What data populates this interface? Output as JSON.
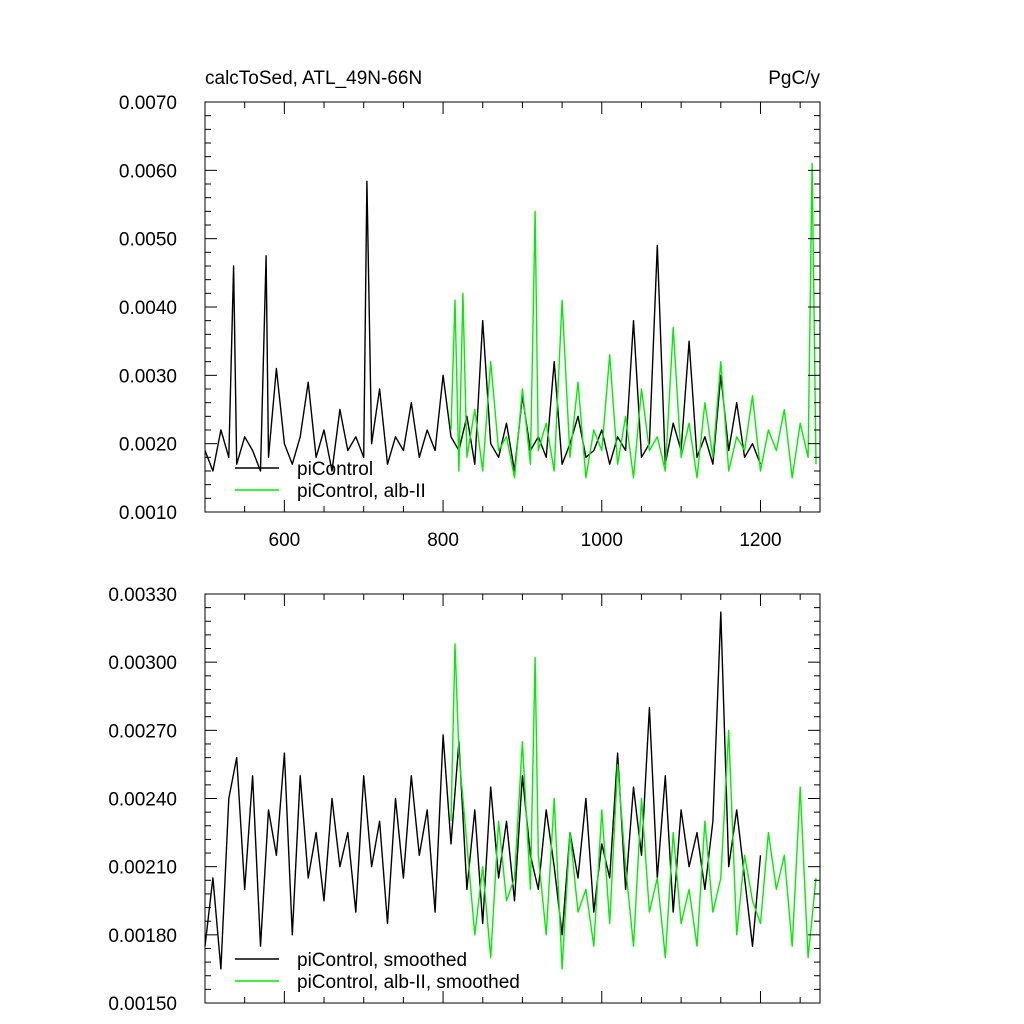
{
  "chart_data": [
    {
      "type": "line",
      "title": "calcToSed, ATL_49N-66N",
      "units": "PgC/y",
      "xlabel": "",
      "ylabel": "",
      "xlim": [
        500,
        1275
      ],
      "ylim": [
        0.001,
        0.007
      ],
      "x_ticks": [
        600,
        800,
        1000,
        1200
      ],
      "x_tick_labels": [
        "600",
        "800",
        "1000",
        "1200"
      ],
      "y_ticks": [
        0.001,
        0.002,
        0.003,
        0.004,
        0.005,
        0.006,
        0.007
      ],
      "y_tick_labels": [
        "0.0010",
        "0.0020",
        "0.0030",
        "0.0040",
        "0.0050",
        "0.0060",
        "0.0070"
      ],
      "grid": false,
      "legend_position": "bottom-left",
      "series": [
        {
          "name": "piControl",
          "color": "#000000",
          "x": [
            500,
            510,
            520,
            530,
            536,
            540,
            550,
            560,
            570,
            577,
            580,
            590,
            600,
            610,
            620,
            630,
            640,
            650,
            660,
            670,
            680,
            690,
            700,
            704,
            710,
            720,
            730,
            740,
            750,
            760,
            770,
            780,
            790,
            800,
            810,
            820,
            830,
            840,
            850,
            860,
            870,
            880,
            890,
            900,
            910,
            920,
            930,
            940,
            950,
            960,
            970,
            980,
            990,
            1000,
            1010,
            1020,
            1030,
            1040,
            1050,
            1060,
            1070,
            1080,
            1090,
            1100,
            1110,
            1120,
            1130,
            1140,
            1150,
            1160,
            1170,
            1180,
            1190,
            1200
          ],
          "values": [
            0.0019,
            0.0016,
            0.0022,
            0.0018,
            0.0046,
            0.0017,
            0.0021,
            0.0019,
            0.0016,
            0.00475,
            0.0018,
            0.0031,
            0.002,
            0.0017,
            0.0021,
            0.0029,
            0.0018,
            0.0022,
            0.0016,
            0.0025,
            0.0019,
            0.0021,
            0.0018,
            0.00584,
            0.002,
            0.0028,
            0.0017,
            0.0021,
            0.0019,
            0.0026,
            0.0018,
            0.0022,
            0.0019,
            0.003,
            0.0021,
            0.0019,
            0.0024,
            0.0017,
            0.0038,
            0.002,
            0.0018,
            0.0023,
            0.0016,
            0.0027,
            0.0019,
            0.0021,
            0.0018,
            0.0032,
            0.0017,
            0.002,
            0.0024,
            0.0018,
            0.0019,
            0.0022,
            0.0017,
            0.0021,
            0.0019,
            0.0038,
            0.0018,
            0.002,
            0.0049,
            0.0017,
            0.0023,
            0.0019,
            0.0035,
            0.0018,
            0.0021,
            0.0017,
            0.003,
            0.0019,
            0.0026,
            0.0018,
            0.002,
            0.0017
          ]
        },
        {
          "name": "piControl, alb-II",
          "color": "#00ee00",
          "x": [
            810,
            815,
            820,
            825,
            830,
            840,
            850,
            860,
            870,
            880,
            890,
            900,
            910,
            916,
            920,
            930,
            940,
            950,
            960,
            970,
            980,
            990,
            1000,
            1010,
            1020,
            1030,
            1040,
            1050,
            1060,
            1070,
            1080,
            1090,
            1100,
            1110,
            1120,
            1130,
            1140,
            1150,
            1160,
            1170,
            1180,
            1190,
            1200,
            1210,
            1220,
            1230,
            1240,
            1250,
            1260,
            1265,
            1270
          ],
          "values": [
            0.0022,
            0.0041,
            0.0016,
            0.0042,
            0.0018,
            0.0025,
            0.0016,
            0.0032,
            0.0019,
            0.0021,
            0.0015,
            0.0028,
            0.0017,
            0.0054,
            0.0019,
            0.0023,
            0.0016,
            0.0041,
            0.0018,
            0.0029,
            0.0015,
            0.0022,
            0.0019,
            0.0033,
            0.0017,
            0.0024,
            0.0015,
            0.0028,
            0.0019,
            0.0021,
            0.0016,
            0.0037,
            0.0018,
            0.0023,
            0.0015,
            0.0026,
            0.0018,
            0.0032,
            0.0016,
            0.0021,
            0.0019,
            0.0027,
            0.0016,
            0.0022,
            0.0019,
            0.0025,
            0.0015,
            0.0023,
            0.0018,
            0.0061,
            0.0017
          ]
        }
      ]
    },
    {
      "type": "line",
      "title": "",
      "xlabel": "",
      "ylabel": "",
      "xlim": [
        500,
        1275
      ],
      "ylim": [
        0.0015,
        0.0033
      ],
      "x_ticks": [
        600,
        800,
        1000,
        1200
      ],
      "y_ticks": [
        0.0015,
        0.0018,
        0.0021,
        0.0024,
        0.0027,
        0.003,
        0.0033
      ],
      "y_tick_labels": [
        "0.00150",
        "0.00180",
        "0.00210",
        "0.00240",
        "0.00270",
        "0.00300",
        "0.00330"
      ],
      "grid": false,
      "legend_position": "bottom-left",
      "series": [
        {
          "name": "piControl, smoothed",
          "color": "#000000",
          "x": [
            500,
            510,
            520,
            530,
            540,
            550,
            560,
            570,
            580,
            590,
            600,
            610,
            620,
            630,
            640,
            650,
            660,
            670,
            680,
            690,
            700,
            710,
            720,
            730,
            740,
            750,
            760,
            770,
            780,
            790,
            800,
            810,
            820,
            830,
            840,
            850,
            860,
            870,
            880,
            890,
            900,
            910,
            920,
            930,
            940,
            950,
            960,
            970,
            980,
            990,
            1000,
            1010,
            1020,
            1030,
            1040,
            1050,
            1060,
            1070,
            1080,
            1090,
            1100,
            1110,
            1120,
            1130,
            1140,
            1150,
            1160,
            1170,
            1180,
            1190,
            1200
          ],
          "values": [
            0.00175,
            0.00205,
            0.00165,
            0.0024,
            0.00258,
            0.002,
            0.0025,
            0.00175,
            0.00235,
            0.00215,
            0.0026,
            0.0018,
            0.0025,
            0.00205,
            0.00225,
            0.00195,
            0.0024,
            0.0021,
            0.00225,
            0.0019,
            0.0025,
            0.0021,
            0.0023,
            0.00185,
            0.0024,
            0.00205,
            0.0025,
            0.00215,
            0.00235,
            0.0019,
            0.00268,
            0.0022,
            0.00265,
            0.002,
            0.00235,
            0.00185,
            0.00245,
            0.00205,
            0.0023,
            0.00195,
            0.0025,
            0.00215,
            0.002,
            0.00235,
            0.0021,
            0.0018,
            0.00225,
            0.00205,
            0.0024,
            0.0019,
            0.0022,
            0.00205,
            0.0026,
            0.002,
            0.00245,
            0.00215,
            0.0028,
            0.00205,
            0.0025,
            0.0019,
            0.00235,
            0.0021,
            0.00225,
            0.002,
            0.0023,
            0.00322,
            0.0021,
            0.00235,
            0.00205,
            0.00175,
            0.00215
          ]
        },
        {
          "name": "piControl, alb-II, smoothed",
          "color": "#00ee00",
          "x": [
            810,
            815,
            820,
            830,
            840,
            850,
            860,
            870,
            880,
            890,
            900,
            910,
            916,
            920,
            930,
            940,
            950,
            960,
            970,
            980,
            990,
            1000,
            1010,
            1020,
            1030,
            1040,
            1050,
            1060,
            1070,
            1080,
            1090,
            1100,
            1110,
            1120,
            1130,
            1140,
            1150,
            1160,
            1170,
            1180,
            1190,
            1200,
            1210,
            1220,
            1230,
            1240,
            1250,
            1260,
            1270
          ],
          "values": [
            0.0023,
            0.00308,
            0.0026,
            0.0022,
            0.0018,
            0.0021,
            0.0017,
            0.0023,
            0.00195,
            0.00205,
            0.00265,
            0.002,
            0.00302,
            0.00215,
            0.0018,
            0.0024,
            0.00165,
            0.00225,
            0.0019,
            0.002,
            0.00175,
            0.00235,
            0.00185,
            0.00255,
            0.0021,
            0.00175,
            0.0024,
            0.0019,
            0.00205,
            0.0017,
            0.00225,
            0.00185,
            0.002,
            0.00175,
            0.0023,
            0.0019,
            0.00205,
            0.0027,
            0.0018,
            0.00215,
            0.00195,
            0.00185,
            0.00225,
            0.002,
            0.00215,
            0.00175,
            0.00245,
            0.0017,
            0.00205
          ]
        }
      ]
    }
  ]
}
